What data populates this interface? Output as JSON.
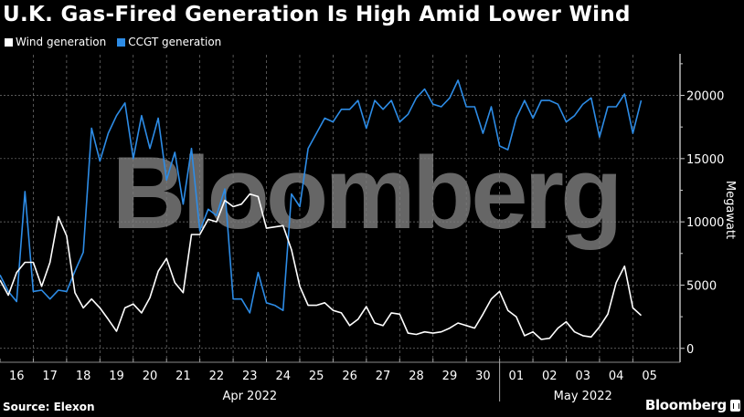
{
  "title": "U.K. Gas-Fired Generation Is High Amid Lower Wind",
  "source": "Source: Elexon",
  "brand": "Bloomberg",
  "watermark": "Bloomberg",
  "colors": {
    "wind": "#ffffff",
    "ccgt": "#2d8ce6",
    "background": "#000000",
    "watermark": "#7f7f7f"
  },
  "chart_data": {
    "type": "line",
    "title": "U.K. Gas-Fired Generation Is High Amid Lower Wind",
    "ylabel": "Megawatt",
    "ylim": [
      -1100,
      23500
    ],
    "yticks": [
      "0",
      "5000",
      "10000",
      "15000",
      "20000"
    ],
    "ytick_values": [
      0,
      5000,
      10000,
      15000,
      20000
    ],
    "xlim": [
      "2022-04-16T00:00",
      "2022-05-06T10:00"
    ],
    "xtick_labels": [
      "16",
      "17",
      "18",
      "19",
      "20",
      "21",
      "22",
      "23",
      "24",
      "25",
      "26",
      "27",
      "28",
      "29",
      "30",
      "01",
      "02",
      "03",
      "04",
      "05"
    ],
    "month_labels": [
      "Apr 2022",
      "May 2022"
    ],
    "grid": true,
    "legend_position": "top-left",
    "step_hours": 6,
    "start": "2022-04-16T00:00",
    "series": [
      {
        "name": "Wind generation",
        "color": "#ffffff",
        "values": [
          5400,
          4200,
          6000,
          6800,
          6800,
          4900,
          6800,
          10400,
          8900,
          4400,
          3200,
          3900,
          3200,
          2300,
          1350,
          3200,
          3500,
          2800,
          4000,
          6100,
          7100,
          5200,
          4400,
          9000,
          9000,
          10200,
          10000,
          11700,
          11200,
          11400,
          12200,
          12000,
          9500,
          9600,
          9700,
          7800,
          4900,
          3400,
          3400,
          3600,
          3000,
          2800,
          1800,
          2300,
          3300,
          2000,
          1800,
          2800,
          2700,
          1200,
          1100,
          1300,
          1200,
          1300,
          1600,
          2000,
          1800,
          1600,
          2700,
          3900,
          4500,
          3000,
          2500,
          1000,
          1300,
          700,
          800,
          1600,
          2100,
          1300,
          1000,
          900,
          1700,
          2700,
          5200,
          6500,
          3200,
          2600
        ]
      },
      {
        "name": "CCGT generation",
        "color": "#2d8ce6",
        "values": [
          5800,
          4500,
          3700,
          12400,
          4500,
          4600,
          3900,
          4600,
          4500,
          6100,
          7600,
          17400,
          14800,
          17000,
          18400,
          19400,
          15000,
          18400,
          15800,
          18200,
          13300,
          15500,
          11400,
          15800,
          9300,
          11000,
          10500,
          12600,
          3900,
          3900,
          2800,
          6000,
          3600,
          3400,
          3000,
          12200,
          11200,
          15800,
          17000,
          18200,
          17900,
          18900,
          18900,
          19600,
          17400,
          19600,
          18900,
          19600,
          17900,
          18500,
          19800,
          20500,
          19300,
          19100,
          19800,
          21200,
          19100,
          19100,
          17000,
          19100,
          16000,
          15700,
          18200,
          19600,
          18200,
          19600,
          19600,
          19300,
          17900,
          18400,
          19300,
          19800,
          16700,
          19100,
          19100,
          20100,
          17000,
          19600
        ]
      }
    ]
  }
}
